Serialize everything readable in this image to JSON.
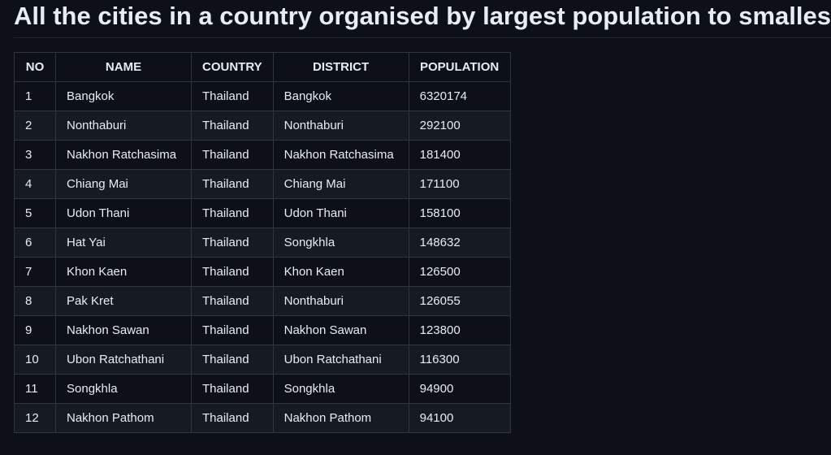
{
  "page": {
    "title": "All the cities in a country organised by largest population to smallest"
  },
  "table": {
    "headers": [
      "NO",
      "NAME",
      "COUNTRY",
      "DISTRICT",
      "POPULATION"
    ],
    "rows": [
      [
        "1",
        "Bangkok",
        "Thailand",
        "Bangkok",
        "6320174"
      ],
      [
        "2",
        "Nonthaburi",
        "Thailand",
        "Nonthaburi",
        "292100"
      ],
      [
        "3",
        "Nakhon Ratchasima",
        "Thailand",
        "Nakhon Ratchasima",
        "181400"
      ],
      [
        "4",
        "Chiang Mai",
        "Thailand",
        "Chiang Mai",
        "171100"
      ],
      [
        "5",
        "Udon Thani",
        "Thailand",
        "Udon Thani",
        "158100"
      ],
      [
        "6",
        "Hat Yai",
        "Thailand",
        "Songkhla",
        "148632"
      ],
      [
        "7",
        "Khon Kaen",
        "Thailand",
        "Khon Kaen",
        "126500"
      ],
      [
        "8",
        "Pak Kret",
        "Thailand",
        "Nonthaburi",
        "126055"
      ],
      [
        "9",
        "Nakhon Sawan",
        "Thailand",
        "Nakhon Sawan",
        "123800"
      ],
      [
        "10",
        "Ubon Ratchathani",
        "Thailand",
        "Ubon Ratchathani",
        "116300"
      ],
      [
        "11",
        "Songkhla",
        "Thailand",
        "Songkhla",
        "94900"
      ],
      [
        "12",
        "Nakhon Pathom",
        "Thailand",
        "Nakhon Pathom",
        "94100"
      ]
    ]
  },
  "colors": {
    "background": "#0d1117",
    "row_alt": "#161b22",
    "border": "#30363d",
    "text": "#e6edf3"
  }
}
